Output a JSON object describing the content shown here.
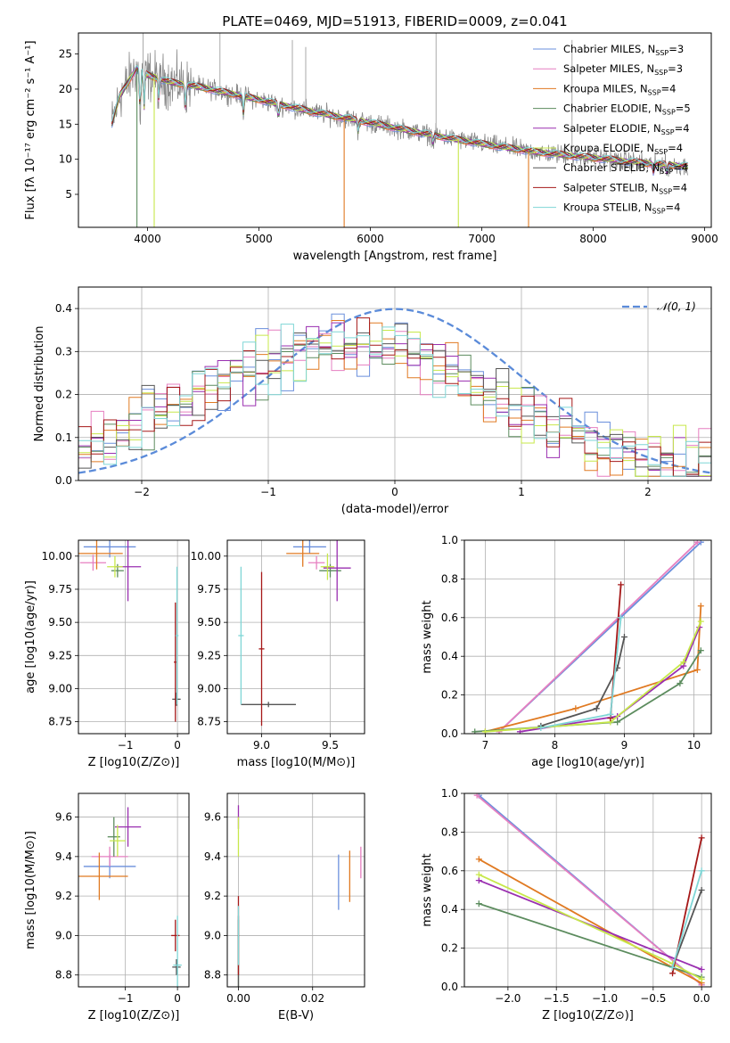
{
  "title": "PLATE=0469, MJD=51913, FIBERID=0009, z=0.041",
  "colors": [
    "#6a8fdc",
    "#e67fc0",
    "#e07a22",
    "#5c8c5e",
    "#9a2fb0",
    "#c7e84a",
    "#555555",
    "#a51818",
    "#7fd6d6"
  ],
  "chart_data": [
    {
      "id": "spectrum",
      "type": "line",
      "title": "PLATE=0469, MJD=51913, FIBERID=0009, z=0.041",
      "xlabel": "wavelength [Angstrom, rest frame]",
      "ylabel": "Flux [fλ 10⁻¹⁷ erg cm⁻² s⁻¹ A⁻¹]",
      "xlim": [
        3380,
        9060
      ],
      "ylim": [
        0.3,
        28
      ],
      "xticks": [
        4000,
        5000,
        6000,
        7000,
        8000,
        9000
      ],
      "yticks": [
        5,
        10,
        15,
        20,
        25
      ],
      "grid": false,
      "legend_position": "top-right",
      "series": [
        {
          "name": "Chabrier MILES, N_SSP=3"
        },
        {
          "name": "Salpeter MILES, N_SSP=3"
        },
        {
          "name": "Kroupa MILES, N_SSP=4"
        },
        {
          "name": "Chabrier ELODIE, N_SSP=5"
        },
        {
          "name": "Salpeter ELODIE, N_SSP=4"
        },
        {
          "name": "Kroupa ELODIE, N_SSP=4"
        },
        {
          "name": "Chabrier STELIB, N_SSP=4"
        },
        {
          "name": "Salpeter STELIB, N_SSP=4"
        },
        {
          "name": "Kroupa STELIB, N_SSP=4"
        }
      ],
      "continuum": [
        [
          3680,
          15
        ],
        [
          3750,
          19
        ],
        [
          3900,
          23
        ],
        [
          4000,
          22
        ],
        [
          4200,
          21
        ],
        [
          4500,
          20.2
        ],
        [
          5000,
          18.5
        ],
        [
          5500,
          16.7
        ],
        [
          6000,
          15.2
        ],
        [
          6500,
          13.6
        ],
        [
          7000,
          12.2
        ],
        [
          7500,
          11
        ],
        [
          8000,
          10.2
        ],
        [
          8500,
          9.4
        ],
        [
          8850,
          9
        ]
      ]
    },
    {
      "id": "residuals",
      "type": "histogram",
      "xlabel": "(data-model)/error",
      "ylabel": "Normed distribution",
      "xlim": [
        -2.5,
        2.5
      ],
      "ylim": [
        0,
        0.45
      ],
      "xticks": [
        -2,
        -1,
        0,
        1,
        2
      ],
      "yticks": [
        0.0,
        0.1,
        0.2,
        0.3,
        0.4
      ],
      "grid": true,
      "legend_position": "top-right",
      "legend_label": "𝒩(0, 1)",
      "reference_curve": "normal(0,1)"
    },
    {
      "id": "age_vs_Z",
      "type": "scatter",
      "xlabel": "Z [log10(Z/Z⊙)]",
      "ylabel": "age  [log10(age/yr)]",
      "xlim": [
        -1.9,
        0.22
      ],
      "ylim": [
        8.66,
        10.12
      ],
      "xticks": [
        -1,
        0
      ],
      "yticks": [
        8.75,
        9.0,
        9.25,
        9.5,
        9.75,
        10.0
      ],
      "grid": true,
      "points": [
        {
          "x": -1.3,
          "y": 10.07,
          "xerr": 0.5,
          "yerr": 0.08
        },
        {
          "x": -1.62,
          "y": 9.95,
          "xerr": 0.25,
          "yerr": 0.06
        },
        {
          "x": -1.55,
          "y": 10.02,
          "xerr": 0.5,
          "yerr": 0.12
        },
        {
          "x": -1.15,
          "y": 9.89,
          "xerr": 0.12,
          "yerr": 0.05
        },
        {
          "x": -0.95,
          "y": 9.92,
          "xerr": 0.25,
          "yerr": 0.26
        },
        {
          "x": -1.2,
          "y": 9.92,
          "xerr": 0.15,
          "yerr": 0.08
        },
        {
          "x": -0.02,
          "y": 8.92,
          "xerr": 0.08,
          "yerr": 0.05
        },
        {
          "x": -0.04,
          "y": 9.2,
          "xerr": 0.03,
          "yerr": 0.45
        },
        {
          "x": -0.01,
          "y": 9.4,
          "xerr": 0.03,
          "yerr": 0.52
        }
      ]
    },
    {
      "id": "age_vs_mass",
      "type": "scatter",
      "xlabel": "mass [log10(M/M⊙)]",
      "ylabel": "",
      "xlim": [
        8.75,
        9.75
      ],
      "ylim": [
        8.66,
        10.12
      ],
      "xticks": [
        9.0,
        9.5
      ],
      "yticks": [
        8.75,
        9.0,
        9.25,
        9.5,
        9.75,
        10.0
      ],
      "grid": true,
      "points": [
        {
          "x": 9.35,
          "y": 10.07,
          "xerr": 0.12,
          "yerr": 0.05
        },
        {
          "x": 9.4,
          "y": 9.95,
          "xerr": 0.06,
          "yerr": 0.05
        },
        {
          "x": 9.3,
          "y": 10.02,
          "xerr": 0.12,
          "yerr": 0.1
        },
        {
          "x": 9.5,
          "y": 9.89,
          "xerr": 0.08,
          "yerr": 0.05
        },
        {
          "x": 9.55,
          "y": 9.91,
          "xerr": 0.1,
          "yerr": 0.25
        },
        {
          "x": 9.48,
          "y": 9.92,
          "xerr": 0.05,
          "yerr": 0.1
        },
        {
          "x": 9.05,
          "y": 8.88,
          "xerr": 0.2,
          "yerr": 0.02
        },
        {
          "x": 9.0,
          "y": 9.3,
          "xerr": 0.02,
          "yerr": 0.58
        },
        {
          "x": 8.85,
          "y": 9.4,
          "xerr": 0.02,
          "yerr": 0.52
        }
      ]
    },
    {
      "id": "weight_vs_age",
      "type": "line",
      "xlabel": "age  [log10(age/yr)]",
      "ylabel": "mass weight",
      "xlim": [
        6.7,
        10.25
      ],
      "ylim": [
        0,
        1
      ],
      "xticks": [
        7,
        8,
        9,
        10
      ],
      "yticks": [
        0.0,
        0.2,
        0.4,
        0.6,
        0.8,
        1.0
      ],
      "grid": true,
      "series": [
        {
          "points": [
            [
              7.2,
              0.01
            ],
            [
              10.1,
              0.99
            ]
          ]
        },
        {
          "points": [
            [
              7.2,
              0.01
            ],
            [
              10.05,
              0.99
            ]
          ]
        },
        {
          "points": [
            [
              7.0,
              0.01
            ],
            [
              8.3,
              0.13
            ],
            [
              10.05,
              0.33
            ],
            [
              10.1,
              0.66
            ]
          ]
        },
        {
          "points": [
            [
              6.85,
              0.01
            ],
            [
              8.9,
              0.06
            ],
            [
              9.8,
              0.26
            ],
            [
              10.1,
              0.43
            ]
          ]
        },
        {
          "points": [
            [
              7.5,
              0.01
            ],
            [
              8.9,
              0.09
            ],
            [
              9.85,
              0.35
            ],
            [
              10.08,
              0.55
            ]
          ]
        },
        {
          "points": [
            [
              7.0,
              0.01
            ],
            [
              8.8,
              0.06
            ],
            [
              9.85,
              0.37
            ],
            [
              10.1,
              0.58
            ]
          ]
        },
        {
          "points": [
            [
              7.8,
              0.04
            ],
            [
              8.6,
              0.13
            ],
            [
              8.9,
              0.34
            ],
            [
              9.0,
              0.5
            ]
          ]
        },
        {
          "points": [
            [
              8.8,
              0.08
            ],
            [
              8.95,
              0.77
            ]
          ]
        },
        {
          "points": [
            [
              7.8,
              0.03
            ],
            [
              8.8,
              0.1
            ],
            [
              8.95,
              0.6
            ]
          ]
        }
      ]
    },
    {
      "id": "mass_vs_Z",
      "type": "scatter",
      "xlabel": "Z [log10(Z/Z⊙)]",
      "ylabel": "mass [log10(M/M⊙)]",
      "xlim": [
        -1.9,
        0.22
      ],
      "ylim": [
        8.74,
        9.72
      ],
      "xticks": [
        -1,
        0
      ],
      "yticks": [
        8.8,
        9.0,
        9.2,
        9.4,
        9.6
      ],
      "grid": true,
      "points": [
        {
          "x": -1.3,
          "y": 9.35,
          "xerr": 0.5,
          "yerr": 0.06
        },
        {
          "x": -1.3,
          "y": 9.4,
          "xerr": 0.35,
          "yerr": 0.05
        },
        {
          "x": -1.5,
          "y": 9.3,
          "xerr": 0.55,
          "yerr": 0.12
        },
        {
          "x": -1.22,
          "y": 9.5,
          "xerr": 0.12,
          "yerr": 0.1
        },
        {
          "x": -0.95,
          "y": 9.55,
          "xerr": 0.25,
          "yerr": 0.1
        },
        {
          "x": -1.15,
          "y": 9.48,
          "xerr": 0.15,
          "yerr": 0.08
        },
        {
          "x": -0.02,
          "y": 8.84,
          "xerr": 0.08,
          "yerr": 0.04
        },
        {
          "x": -0.04,
          "y": 9.0,
          "xerr": 0.08,
          "yerr": 0.08
        },
        {
          "x": 0.0,
          "y": 8.85,
          "xerr": 0.08,
          "yerr": 0.25
        }
      ]
    },
    {
      "id": "mass_vs_ebv",
      "type": "scatter",
      "xlabel": "E(B-V)",
      "ylabel": "",
      "xlim": [
        -0.003,
        0.034
      ],
      "ylim": [
        8.74,
        9.72
      ],
      "xticks": [
        0.0,
        0.02
      ],
      "yticks": [
        8.8,
        9.0,
        9.2,
        9.4,
        9.6
      ],
      "grid": true,
      "points": [
        {
          "x": 0.027,
          "y": 9.27,
          "yerr": 0.14
        },
        {
          "x": 0.033,
          "y": 9.37,
          "yerr": 0.08
        },
        {
          "x": 0.03,
          "y": 9.3,
          "yerr": 0.13
        },
        {
          "x": 0.0,
          "y": 8.9,
          "yerr": 0.18
        },
        {
          "x": 0.0,
          "y": 9.6,
          "yerr": 0.06
        },
        {
          "x": 0.0,
          "y": 9.5,
          "yerr": 0.1
        },
        {
          "x": 0.0,
          "y": 8.9,
          "yerr": 0.2
        },
        {
          "x": 0.0,
          "y": 9.0,
          "yerr": 0.2
        },
        {
          "x": 0.0,
          "y": 9.0,
          "yerr": 0.15
        }
      ]
    },
    {
      "id": "weight_vs_Z",
      "type": "line",
      "xlabel": "Z [log10(Z/Z⊙)]",
      "ylabel": "mass weight",
      "xlim": [
        -2.45,
        0.1
      ],
      "ylim": [
        0,
        1
      ],
      "xticks": [
        -2.0,
        -1.5,
        -1.0,
        -0.5,
        0.0
      ],
      "yticks": [
        0.0,
        0.2,
        0.4,
        0.6,
        0.8,
        1.0
      ],
      "grid": true,
      "series": [
        {
          "points": [
            [
              -2.3,
              0.99
            ],
            [
              0.0,
              0.01
            ]
          ]
        },
        {
          "points": [
            [
              -2.32,
              0.99
            ],
            [
              0.0,
              0.01
            ]
          ]
        },
        {
          "points": [
            [
              -2.3,
              0.66
            ],
            [
              -0.3,
              0.1
            ],
            [
              0.0,
              0.02
            ]
          ]
        },
        {
          "points": [
            [
              -2.3,
              0.43
            ],
            [
              -0.3,
              0.1
            ],
            [
              0.0,
              0.05
            ]
          ]
        },
        {
          "points": [
            [
              -2.3,
              0.55
            ],
            [
              0.0,
              0.09
            ]
          ]
        },
        {
          "points": [
            [
              -2.3,
              0.58
            ],
            [
              -0.3,
              0.12
            ],
            [
              0.0,
              0.04
            ]
          ]
        },
        {
          "points": [
            [
              -0.3,
              0.1
            ],
            [
              0.0,
              0.5
            ]
          ]
        },
        {
          "points": [
            [
              -0.3,
              0.07
            ],
            [
              0.0,
              0.77
            ]
          ]
        },
        {
          "points": [
            [
              -0.3,
              0.1
            ],
            [
              0.0,
              0.6
            ]
          ]
        }
      ]
    }
  ]
}
